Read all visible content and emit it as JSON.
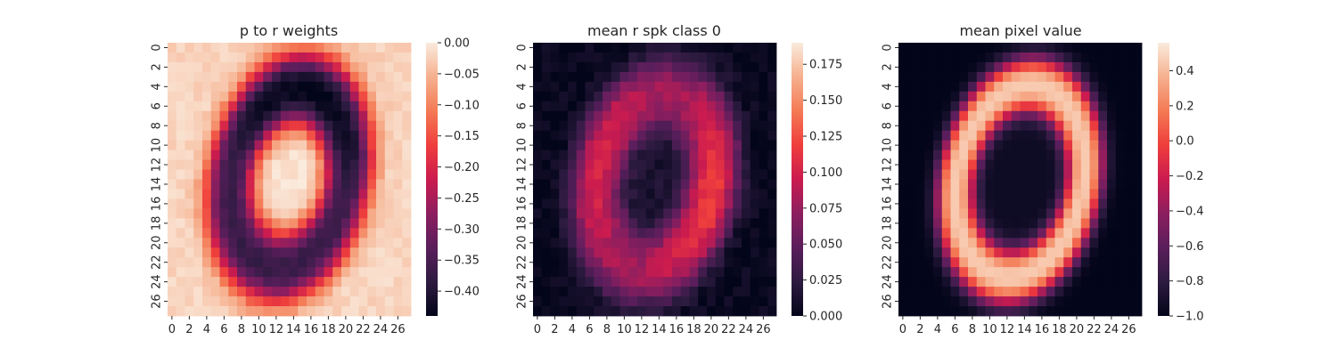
{
  "chart_data": [
    {
      "type": "heatmap",
      "title": "p to r weights",
      "grid": false,
      "rows": 28,
      "cols": 28,
      "x_tick_labels": [
        "0",
        "2",
        "4",
        "6",
        "8",
        "10",
        "12",
        "14",
        "16",
        "18",
        "20",
        "22",
        "24",
        "26"
      ],
      "y_tick_labels": [
        "0",
        "2",
        "4",
        "6",
        "8",
        "10",
        "12",
        "14",
        "16",
        "18",
        "20",
        "22",
        "24",
        "26"
      ],
      "colorbar": {
        "min": -0.44,
        "max": 0.0,
        "ticks": [
          "0.00",
          "-0.05",
          "-0.10",
          "-0.15",
          "-0.20",
          "-0.25",
          "-0.30",
          "-0.35",
          "-0.40"
        ]
      },
      "pattern": {
        "kind": "ring",
        "center": [
          14,
          13.9
        ],
        "rx": 9.4,
        "ry": 13.2,
        "thickness": 6.2,
        "tilt_deg": 15,
        "inside": -0.005,
        "ring_level": -0.37,
        "outside": -0.02,
        "noise": 0.012
      }
    },
    {
      "type": "heatmap",
      "title": "mean r spk class 0",
      "grid": false,
      "rows": 28,
      "cols": 28,
      "x_tick_labels": [
        "0",
        "2",
        "4",
        "6",
        "8",
        "10",
        "12",
        "14",
        "16",
        "18",
        "20",
        "22",
        "24",
        "26"
      ],
      "y_tick_labels": [
        "0",
        "2",
        "4",
        "6",
        "8",
        "10",
        "12",
        "14",
        "16",
        "18",
        "20",
        "22",
        "24",
        "26"
      ],
      "colorbar": {
        "min": 0.0,
        "max": 0.19,
        "ticks": [
          "0.175",
          "0.150",
          "0.125",
          "0.100",
          "0.075",
          "0.050",
          "0.025",
          "0.000"
        ]
      },
      "pattern": {
        "kind": "ring",
        "center": [
          14,
          14.2
        ],
        "rx": 9.6,
        "ry": 13.2,
        "thickness": 6.6,
        "tilt_deg": 15,
        "inside": 0.01,
        "ring_level": 0.075,
        "outside": 0.002,
        "noise": 0.008
      }
    },
    {
      "type": "heatmap",
      "title": "mean pixel value",
      "grid": false,
      "rows": 28,
      "cols": 28,
      "x_tick_labels": [
        "0",
        "2",
        "4",
        "6",
        "8",
        "10",
        "12",
        "14",
        "16",
        "18",
        "20",
        "22",
        "24",
        "26"
      ],
      "y_tick_labels": [
        "0",
        "2",
        "4",
        "6",
        "8",
        "10",
        "12",
        "14",
        "16",
        "18",
        "20",
        "22",
        "24",
        "26"
      ],
      "colorbar": {
        "min": -1.0,
        "max": 0.56,
        "ticks": [
          "0.4",
          "0.2",
          "0.0",
          "-0.2",
          "-0.4",
          "-0.6",
          "-0.8",
          "-1.0"
        ]
      },
      "pattern": {
        "kind": "ring",
        "center": [
          14,
          14.2
        ],
        "rx": 9.4,
        "ry": 13.0,
        "thickness": 4.8,
        "tilt_deg": 15,
        "inside": -0.95,
        "ring_level": 0.45,
        "outside": -1.0,
        "noise": 0.0
      }
    }
  ]
}
